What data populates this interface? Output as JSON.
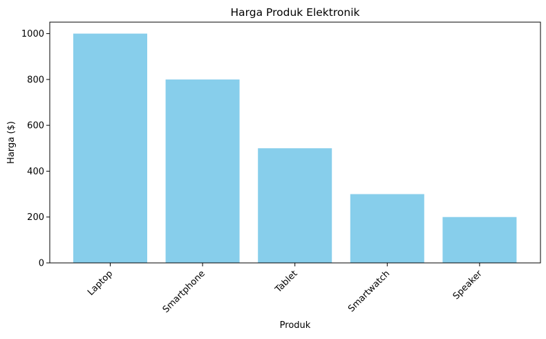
{
  "chart_data": {
    "type": "bar",
    "title": "Harga Produk Elektronik",
    "xlabel": "Produk",
    "ylabel": "Harga ($)",
    "categories": [
      "Laptop",
      "Smartphone",
      "Tablet",
      "Smartwatch",
      "Speaker"
    ],
    "values": [
      1000,
      800,
      500,
      300,
      200
    ],
    "ylim": [
      0,
      1050
    ],
    "yticks": [
      0,
      200,
      400,
      600,
      800,
      1000
    ],
    "bar_color": "#87CEEB",
    "grid": false,
    "legend": "none"
  }
}
